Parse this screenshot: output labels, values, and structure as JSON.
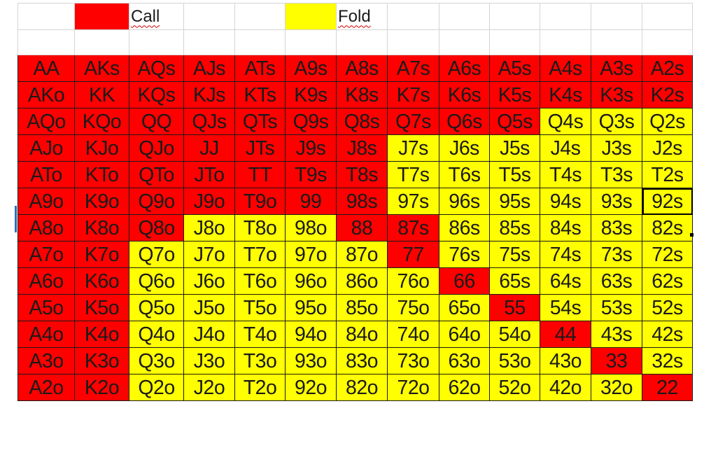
{
  "legend": {
    "call_label": "Call",
    "fold_label": "Fold",
    "call_color": "#ff0000",
    "fold_color": "#ffff00"
  },
  "ranks": [
    "A",
    "K",
    "Q",
    "J",
    "T",
    "9",
    "8",
    "7",
    "6",
    "5",
    "4",
    "3",
    "2"
  ],
  "selected_cell": "92s",
  "grid": [
    [
      [
        "AA",
        "call"
      ],
      [
        "AKs",
        "call"
      ],
      [
        "AQs",
        "call"
      ],
      [
        "AJs",
        "call"
      ],
      [
        "ATs",
        "call"
      ],
      [
        "A9s",
        "call"
      ],
      [
        "A8s",
        "call"
      ],
      [
        "A7s",
        "call"
      ],
      [
        "A6s",
        "call"
      ],
      [
        "A5s",
        "call"
      ],
      [
        "A4s",
        "call"
      ],
      [
        "A3s",
        "call"
      ],
      [
        "A2s",
        "call"
      ]
    ],
    [
      [
        "AKo",
        "call"
      ],
      [
        "KK",
        "call"
      ],
      [
        "KQs",
        "call"
      ],
      [
        "KJs",
        "call"
      ],
      [
        "KTs",
        "call"
      ],
      [
        "K9s",
        "call"
      ],
      [
        "K8s",
        "call"
      ],
      [
        "K7s",
        "call"
      ],
      [
        "K6s",
        "call"
      ],
      [
        "K5s",
        "call"
      ],
      [
        "K4s",
        "call"
      ],
      [
        "K3s",
        "call"
      ],
      [
        "K2s",
        "call"
      ]
    ],
    [
      [
        "AQo",
        "call"
      ],
      [
        "KQo",
        "call"
      ],
      [
        "QQ",
        "call"
      ],
      [
        "QJs",
        "call"
      ],
      [
        "QTs",
        "call"
      ],
      [
        "Q9s",
        "call"
      ],
      [
        "Q8s",
        "call"
      ],
      [
        "Q7s",
        "call"
      ],
      [
        "Q6s",
        "call"
      ],
      [
        "Q5s",
        "call"
      ],
      [
        "Q4s",
        "fold"
      ],
      [
        "Q3s",
        "fold"
      ],
      [
        "Q2s",
        "fold"
      ]
    ],
    [
      [
        "AJo",
        "call"
      ],
      [
        "KJo",
        "call"
      ],
      [
        "QJo",
        "call"
      ],
      [
        "JJ",
        "call"
      ],
      [
        "JTs",
        "call"
      ],
      [
        "J9s",
        "call"
      ],
      [
        "J8s",
        "call"
      ],
      [
        "J7s",
        "fold"
      ],
      [
        "J6s",
        "fold"
      ],
      [
        "J5s",
        "fold"
      ],
      [
        "J4s",
        "fold"
      ],
      [
        "J3s",
        "fold"
      ],
      [
        "J2s",
        "fold"
      ]
    ],
    [
      [
        "ATo",
        "call"
      ],
      [
        "KTo",
        "call"
      ],
      [
        "QTo",
        "call"
      ],
      [
        "JTo",
        "call"
      ],
      [
        "TT",
        "call"
      ],
      [
        "T9s",
        "call"
      ],
      [
        "T8s",
        "call"
      ],
      [
        "T7s",
        "fold"
      ],
      [
        "T6s",
        "fold"
      ],
      [
        "T5s",
        "fold"
      ],
      [
        "T4s",
        "fold"
      ],
      [
        "T3s",
        "fold"
      ],
      [
        "T2s",
        "fold"
      ]
    ],
    [
      [
        "A9o",
        "call"
      ],
      [
        "K9o",
        "call"
      ],
      [
        "Q9o",
        "call"
      ],
      [
        "J9o",
        "call"
      ],
      [
        "T9o",
        "call"
      ],
      [
        "99",
        "call"
      ],
      [
        "98s",
        "call"
      ],
      [
        "97s",
        "fold"
      ],
      [
        "96s",
        "fold"
      ],
      [
        "95s",
        "fold"
      ],
      [
        "94s",
        "fold"
      ],
      [
        "93s",
        "fold"
      ],
      [
        "92s",
        "fold"
      ]
    ],
    [
      [
        "A8o",
        "call"
      ],
      [
        "K8o",
        "call"
      ],
      [
        "Q8o",
        "call"
      ],
      [
        "J8o",
        "fold"
      ],
      [
        "T8o",
        "fold"
      ],
      [
        "98o",
        "fold"
      ],
      [
        "88",
        "call"
      ],
      [
        "87s",
        "call"
      ],
      [
        "86s",
        "fold"
      ],
      [
        "85s",
        "fold"
      ],
      [
        "84s",
        "fold"
      ],
      [
        "83s",
        "fold"
      ],
      [
        "82s",
        "fold"
      ]
    ],
    [
      [
        "A7o",
        "call"
      ],
      [
        "K7o",
        "call"
      ],
      [
        "Q7o",
        "fold"
      ],
      [
        "J7o",
        "fold"
      ],
      [
        "T7o",
        "fold"
      ],
      [
        "97o",
        "fold"
      ],
      [
        "87o",
        "fold"
      ],
      [
        "77",
        "call"
      ],
      [
        "76s",
        "fold"
      ],
      [
        "75s",
        "fold"
      ],
      [
        "74s",
        "fold"
      ],
      [
        "73s",
        "fold"
      ],
      [
        "72s",
        "fold"
      ]
    ],
    [
      [
        "A6o",
        "call"
      ],
      [
        "K6o",
        "call"
      ],
      [
        "Q6o",
        "fold"
      ],
      [
        "J6o",
        "fold"
      ],
      [
        "T6o",
        "fold"
      ],
      [
        "96o",
        "fold"
      ],
      [
        "86o",
        "fold"
      ],
      [
        "76o",
        "fold"
      ],
      [
        "66",
        "call"
      ],
      [
        "65s",
        "fold"
      ],
      [
        "64s",
        "fold"
      ],
      [
        "63s",
        "fold"
      ],
      [
        "62s",
        "fold"
      ]
    ],
    [
      [
        "A5o",
        "call"
      ],
      [
        "K5o",
        "call"
      ],
      [
        "Q5o",
        "fold"
      ],
      [
        "J5o",
        "fold"
      ],
      [
        "T5o",
        "fold"
      ],
      [
        "95o",
        "fold"
      ],
      [
        "85o",
        "fold"
      ],
      [
        "75o",
        "fold"
      ],
      [
        "65o",
        "fold"
      ],
      [
        "55",
        "call"
      ],
      [
        "54s",
        "fold"
      ],
      [
        "53s",
        "fold"
      ],
      [
        "52s",
        "fold"
      ]
    ],
    [
      [
        "A4o",
        "call"
      ],
      [
        "K4o",
        "call"
      ],
      [
        "Q4o",
        "fold"
      ],
      [
        "J4o",
        "fold"
      ],
      [
        "T4o",
        "fold"
      ],
      [
        "94o",
        "fold"
      ],
      [
        "84o",
        "fold"
      ],
      [
        "74o",
        "fold"
      ],
      [
        "64o",
        "fold"
      ],
      [
        "54o",
        "fold"
      ],
      [
        "44",
        "call"
      ],
      [
        "43s",
        "fold"
      ],
      [
        "42s",
        "fold"
      ]
    ],
    [
      [
        "A3o",
        "call"
      ],
      [
        "K3o",
        "call"
      ],
      [
        "Q3o",
        "fold"
      ],
      [
        "J3o",
        "fold"
      ],
      [
        "T3o",
        "fold"
      ],
      [
        "93o",
        "fold"
      ],
      [
        "83o",
        "fold"
      ],
      [
        "73o",
        "fold"
      ],
      [
        "63o",
        "fold"
      ],
      [
        "53o",
        "fold"
      ],
      [
        "43o",
        "fold"
      ],
      [
        "33",
        "call"
      ],
      [
        "32s",
        "fold"
      ]
    ],
    [
      [
        "A2o",
        "call"
      ],
      [
        "K2o",
        "call"
      ],
      [
        "Q2o",
        "fold"
      ],
      [
        "J2o",
        "fold"
      ],
      [
        "T2o",
        "fold"
      ],
      [
        "92o",
        "fold"
      ],
      [
        "82o",
        "fold"
      ],
      [
        "72o",
        "fold"
      ],
      [
        "62o",
        "fold"
      ],
      [
        "52o",
        "fold"
      ],
      [
        "42o",
        "fold"
      ],
      [
        "32o",
        "fold"
      ],
      [
        "22",
        "call"
      ]
    ]
  ]
}
